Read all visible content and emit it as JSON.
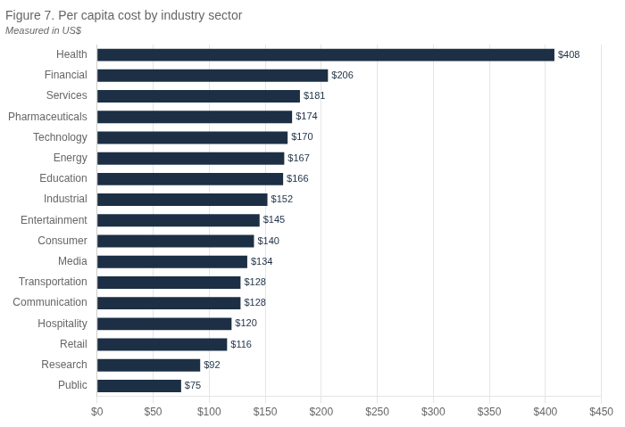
{
  "chart_data": {
    "type": "bar",
    "orientation": "horizontal",
    "title": "Figure 7. Per capita cost by industry sector",
    "subtitle": "Measured in US$",
    "categories": [
      "Public",
      "Research",
      "Retail",
      "Hospitality",
      "Communication",
      "Transportation",
      "Media",
      "Consumer",
      "Entertainment",
      "Industrial",
      "Education",
      "Energy",
      "Technology",
      "Pharmaceuticals",
      "Services",
      "Financial",
      "Health"
    ],
    "values": [
      75,
      92,
      116,
      120,
      128,
      128,
      134,
      140,
      145,
      152,
      166,
      167,
      170,
      174,
      181,
      206,
      408
    ],
    "value_labels": [
      "$75",
      "$92",
      "$116",
      "$120",
      "$128",
      "$128",
      "$134",
      "$140",
      "$145",
      "$152",
      "$166",
      "$167",
      "$170",
      "$174",
      "$181",
      "$206",
      "$408"
    ],
    "data_labels": true,
    "color": "#1c2f45",
    "xlim": [
      0,
      450
    ],
    "xticks": [
      {
        "value": 0,
        "label": "$0"
      },
      {
        "value": 50,
        "label": "$50"
      },
      {
        "value": 100,
        "label": "$100"
      },
      {
        "value": 150,
        "label": "$150"
      },
      {
        "value": 200,
        "label": "$200"
      },
      {
        "value": 250,
        "label": "$250"
      },
      {
        "value": 300,
        "label": "$300"
      },
      {
        "value": 350,
        "label": "$350"
      },
      {
        "value": 400,
        "label": "$400"
      },
      {
        "value": 450,
        "label": "$450"
      }
    ],
    "grid": true
  }
}
